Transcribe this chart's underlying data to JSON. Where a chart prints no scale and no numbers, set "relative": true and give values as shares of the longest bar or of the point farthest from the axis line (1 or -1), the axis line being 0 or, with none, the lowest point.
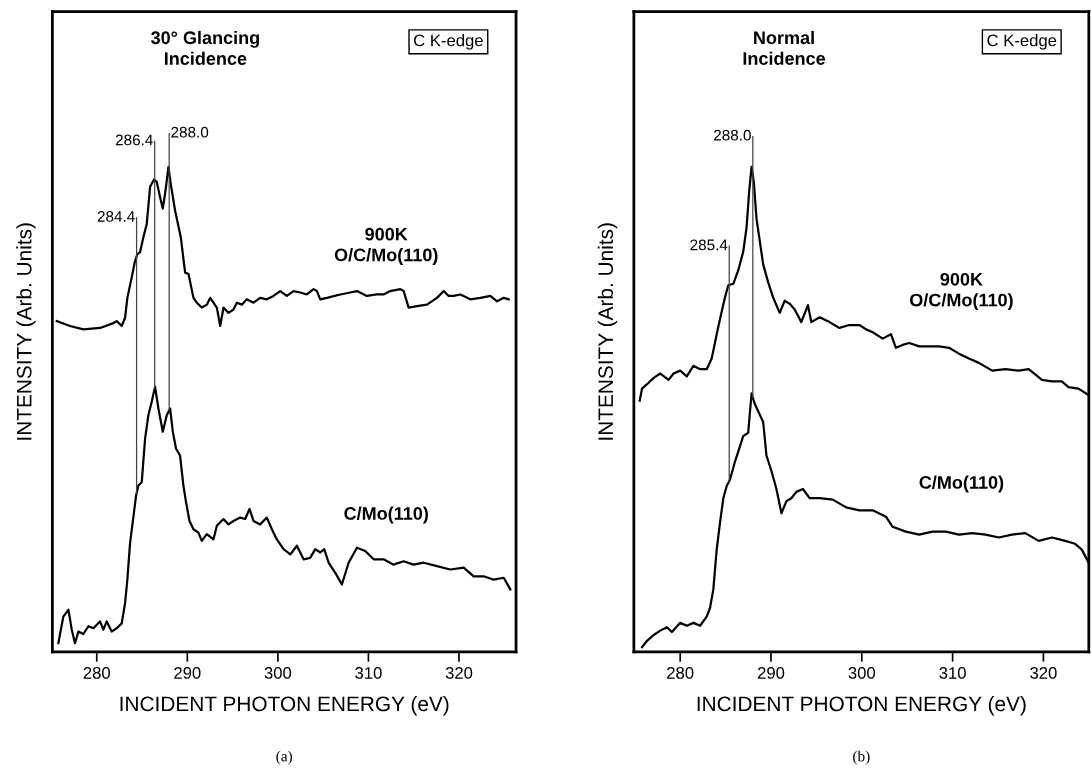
{
  "chart_data": [
    {
      "type": "line",
      "title": "30° Glancing\nIncidence",
      "xlabel": "INCIDENT PHOTON ENERGY (eV)",
      "ylabel": "INTENSITY (Arb. Units)",
      "relative": true,
      "tick_labels": "x",
      "xlim": [
        275.1,
        326.3
      ],
      "xticks": [
        280,
        290,
        300,
        310,
        320
      ],
      "annotations": [
        "C K-edge",
        "(a)"
      ],
      "ref_lines": [
        {
          "axis": "x",
          "value": 284.4,
          "label": "284.4"
        },
        {
          "axis": "x",
          "value": 286.4,
          "label": "286.4"
        },
        {
          "axis": "x",
          "value": 288.0,
          "label": "288.0"
        }
      ],
      "series": [
        {
          "name": "900K\nO/C/Mo(110)",
          "color": "#000000",
          "x": [
            275.58,
            277.05,
            278.52,
            280.37,
            281.84,
            282.21,
            282.76,
            283.13,
            283.38,
            283.86,
            284.23,
            284.49,
            284.78,
            285.15,
            285.52,
            285.89,
            286.33,
            286.63,
            286.99,
            287.29,
            287.55,
            287.92,
            288.17,
            288.65,
            289.28,
            289.76,
            290.13,
            290.68,
            291.05,
            291.6,
            292.16,
            292.52,
            292.89,
            293.26,
            293.63,
            294.0,
            294.55,
            295.1,
            295.47,
            296.02,
            296.57,
            297.31,
            298.05,
            298.78,
            299.52,
            300.26,
            300.99,
            301.73,
            302.47,
            303.2,
            303.94,
            304.31,
            304.68,
            305.41,
            306.89,
            307.99,
            308.73,
            309.83,
            310.94,
            311.67,
            312.41,
            313.52,
            313.89,
            314.44,
            315.36,
            316.46,
            317.57,
            318.31,
            318.86,
            319.41,
            320.15,
            321.25,
            322.36,
            323.46,
            324.2,
            324.94,
            325.49
          ],
          "values": [
            0.682,
            0.672,
            0.665,
            0.668,
            0.678,
            0.682,
            0.672,
            0.689,
            0.73,
            0.772,
            0.806,
            0.82,
            0.824,
            0.855,
            0.882,
            0.959,
            0.974,
            0.969,
            0.938,
            0.914,
            0.945,
            1.0,
            0.965,
            0.91,
            0.855,
            0.782,
            0.779,
            0.73,
            0.72,
            0.71,
            0.716,
            0.73,
            0.72,
            0.71,
            0.672,
            0.71,
            0.699,
            0.706,
            0.72,
            0.716,
            0.727,
            0.72,
            0.73,
            0.727,
            0.734,
            0.744,
            0.734,
            0.744,
            0.741,
            0.737,
            0.748,
            0.744,
            0.727,
            0.73,
            0.737,
            0.741,
            0.744,
            0.734,
            0.737,
            0.737,
            0.744,
            0.748,
            0.744,
            0.71,
            0.713,
            0.716,
            0.73,
            0.744,
            0.734,
            0.734,
            0.737,
            0.727,
            0.73,
            0.734,
            0.723,
            0.73,
            0.727
          ]
        },
        {
          "name": "C/Mo(110)",
          "color": "#000000",
          "x": [
            275.76,
            276.31,
            276.87,
            277.24,
            277.6,
            277.97,
            278.52,
            279.08,
            279.63,
            280.36,
            280.73,
            281.1,
            281.65,
            282.21,
            282.76,
            283.13,
            283.38,
            283.68,
            283.97,
            284.34,
            284.6,
            284.97,
            285.34,
            285.7,
            286.07,
            286.44,
            286.81,
            287.29,
            287.73,
            288.1,
            288.4,
            288.76,
            289.2,
            289.57,
            289.87,
            290.24,
            290.68,
            291.23,
            291.6,
            292.15,
            292.89,
            293.26,
            293.99,
            294.55,
            295.1,
            295.84,
            296.39,
            296.87,
            297.31,
            298.05,
            298.78,
            299.34,
            299.89,
            300.63,
            301.37,
            302.1,
            302.84,
            303.57,
            304.13,
            304.68,
            305.12,
            305.6,
            306.34,
            307.07,
            307.81,
            308.73,
            309.65,
            310.57,
            311.68,
            312.78,
            313.89,
            314.99,
            316.1,
            317.57,
            319.04,
            320.52,
            321.62,
            322.73,
            323.83,
            324.94,
            325.67
          ],
          "values": [
            0.018,
            0.073,
            0.087,
            0.046,
            0.018,
            0.042,
            0.037,
            0.053,
            0.049,
            0.063,
            0.046,
            0.063,
            0.042,
            0.049,
            0.059,
            0.101,
            0.149,
            0.225,
            0.267,
            0.322,
            0.343,
            0.35,
            0.44,
            0.488,
            0.516,
            0.547,
            0.502,
            0.454,
            0.488,
            0.502,
            0.454,
            0.419,
            0.405,
            0.343,
            0.308,
            0.27,
            0.253,
            0.246,
            0.229,
            0.243,
            0.232,
            0.26,
            0.274,
            0.263,
            0.27,
            0.277,
            0.274,
            0.295,
            0.27,
            0.263,
            0.277,
            0.253,
            0.232,
            0.212,
            0.201,
            0.219,
            0.191,
            0.194,
            0.212,
            0.205,
            0.212,
            0.184,
            0.163,
            0.139,
            0.184,
            0.215,
            0.208,
            0.191,
            0.191,
            0.18,
            0.187,
            0.18,
            0.184,
            0.177,
            0.17,
            0.174,
            0.156,
            0.156,
            0.149,
            0.153,
            0.129
          ]
        }
      ]
    },
    {
      "type": "line",
      "title": "Normal\nIncidence",
      "xlabel": "INCIDENT PHOTON ENERGY (eV)",
      "ylabel": "INTENSITY (Arb. Units)",
      "relative": true,
      "tick_labels": "x",
      "xlim": [
        274.9,
        325.0
      ],
      "xticks": [
        280,
        290,
        300,
        310,
        320
      ],
      "annotations": [
        "C K-edge",
        "(b)"
      ],
      "ref_lines": [
        {
          "axis": "x",
          "value": 285.4,
          "label": "285.4"
        },
        {
          "axis": "x",
          "value": 288.0,
          "label": "288.0"
        }
      ],
      "series": [
        {
          "name": "900K\nO/C/Mo(110)",
          "color": "#000000",
          "x": [
            275.54,
            275.8,
            276.35,
            277.08,
            277.81,
            278.72,
            279.27,
            280.0,
            280.73,
            281.46,
            282.19,
            282.92,
            283.47,
            283.65,
            284.02,
            284.39,
            284.93,
            285.3,
            285.85,
            286.4,
            286.94,
            287.31,
            287.6,
            287.86,
            288.11,
            288.41,
            289.14,
            289.69,
            290.23,
            290.96,
            291.51,
            292.06,
            292.61,
            293.34,
            294.07,
            294.44,
            295.35,
            296.45,
            297.54,
            298.64,
            299.74,
            300.47,
            301.2,
            302.3,
            303.21,
            303.76,
            304.49,
            305.22,
            306.32,
            307.41,
            308.51,
            309.61,
            310.7,
            311.8,
            312.89,
            314.36,
            315.82,
            317.28,
            318.38,
            319.84,
            320.94,
            322.03,
            322.76,
            323.86,
            324.96
          ],
          "values": [
            0.518,
            0.543,
            0.552,
            0.565,
            0.574,
            0.561,
            0.574,
            0.58,
            0.568,
            0.59,
            0.583,
            0.583,
            0.605,
            0.621,
            0.655,
            0.687,
            0.731,
            0.756,
            0.759,
            0.787,
            0.825,
            0.875,
            0.95,
            1.0,
            0.969,
            0.893,
            0.799,
            0.762,
            0.731,
            0.699,
            0.724,
            0.718,
            0.706,
            0.68,
            0.715,
            0.68,
            0.69,
            0.68,
            0.668,
            0.674,
            0.674,
            0.665,
            0.659,
            0.646,
            0.655,
            0.627,
            0.633,
            0.637,
            0.63,
            0.63,
            0.63,
            0.627,
            0.615,
            0.605,
            0.596,
            0.58,
            0.583,
            0.58,
            0.583,
            0.561,
            0.558,
            0.558,
            0.546,
            0.543,
            0.53
          ]
        },
        {
          "name": "C/Mo(110)",
          "color": "#000000",
          "x": [
            275.8,
            276.35,
            277.08,
            277.81,
            278.54,
            279.09,
            280.0,
            280.73,
            281.46,
            282.19,
            282.92,
            283.29,
            283.65,
            284.02,
            284.39,
            284.75,
            285.12,
            285.48,
            286.03,
            286.58,
            286.94,
            287.49,
            287.86,
            288.22,
            288.77,
            289.14,
            289.5,
            290.05,
            290.6,
            291.15,
            291.7,
            292.24,
            292.79,
            293.52,
            294.25,
            295.35,
            296.81,
            298.27,
            299.74,
            301.2,
            302.66,
            303.39,
            304.85,
            306.32,
            307.78,
            309.24,
            310.7,
            312.16,
            313.63,
            315.09,
            316.55,
            318.01,
            319.47,
            320.94,
            322.4,
            323.49,
            324.23,
            324.96
          ],
          "values": [
            0.01,
            0.023,
            0.035,
            0.044,
            0.051,
            0.041,
            0.06,
            0.054,
            0.06,
            0.054,
            0.073,
            0.091,
            0.129,
            0.211,
            0.267,
            0.317,
            0.342,
            0.355,
            0.392,
            0.424,
            0.445,
            0.452,
            0.533,
            0.511,
            0.489,
            0.474,
            0.405,
            0.373,
            0.336,
            0.286,
            0.311,
            0.317,
            0.33,
            0.336,
            0.317,
            0.317,
            0.314,
            0.298,
            0.292,
            0.292,
            0.279,
            0.258,
            0.248,
            0.242,
            0.248,
            0.248,
            0.242,
            0.245,
            0.242,
            0.236,
            0.242,
            0.245,
            0.229,
            0.236,
            0.229,
            0.223,
            0.211,
            0.185
          ]
        }
      ]
    }
  ]
}
